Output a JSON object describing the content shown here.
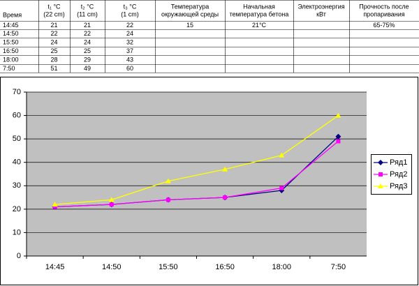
{
  "table": {
    "headers": [
      [
        "Время"
      ],
      [
        "t₁  °C",
        "(22 cm)"
      ],
      [
        "t₂  °C",
        "(11 cm)"
      ],
      [
        "t₃  °C",
        "(1 cm)"
      ],
      [
        "Температура",
        "окружающей среды"
      ],
      [
        "Начальная",
        "температура бетона"
      ],
      [
        "Электроэнергия",
        "кВт"
      ],
      [
        "Прочность после",
        "пропаривания"
      ]
    ],
    "rows": [
      [
        "14:45",
        21,
        21,
        22
      ],
      [
        "14:50",
        22,
        22,
        24
      ],
      [
        "15:50",
        24,
        24,
        32
      ],
      [
        "16:50",
        25,
        25,
        37
      ],
      [
        "18:00",
        28,
        29,
        43
      ],
      [
        "7:50",
        51,
        49,
        60
      ]
    ],
    "first_row_extra": {
      "ambient": 15,
      "initial": "21°C",
      "strength": "65-75%"
    }
  },
  "chart_data": {
    "type": "line",
    "categories": [
      "14:45",
      "14:50",
      "15:50",
      "16:50",
      "18:00",
      "7:50"
    ],
    "series": [
      {
        "name": "Ряд1",
        "color": "#000080",
        "marker": "diamond",
        "values": [
          21,
          22,
          24,
          25,
          28,
          51
        ]
      },
      {
        "name": "Ряд2",
        "color": "#ff00ff",
        "marker": "square",
        "values": [
          21,
          22,
          24,
          25,
          29,
          49
        ]
      },
      {
        "name": "Ряд3",
        "color": "#ffff00",
        "marker": "triangle",
        "values": [
          22,
          24,
          32,
          37,
          43,
          60
        ]
      }
    ],
    "ylim": [
      0,
      70
    ],
    "yticks": [
      0,
      10,
      20,
      30,
      40,
      50,
      60,
      70
    ],
    "grid": true,
    "legend": "right"
  }
}
